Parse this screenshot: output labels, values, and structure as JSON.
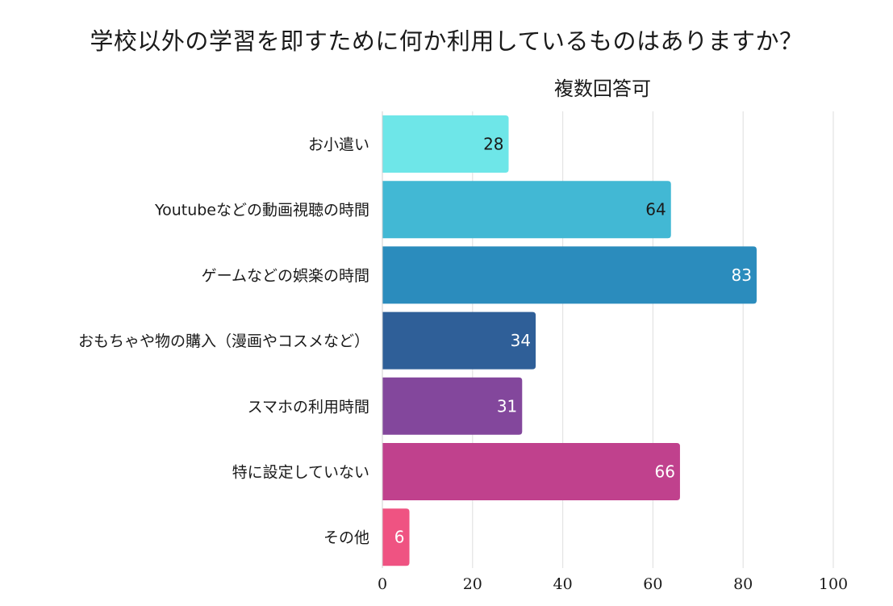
{
  "chart_data": {
    "type": "bar",
    "orientation": "horizontal",
    "title": "学校以外の学習を即すために何か利用しているものはありますか？",
    "subtitle": "複数回答可",
    "categories": [
      "お小遣い",
      "Youtubeなどの動画視聴の時間",
      "ゲームなどの娯楽の時間",
      "おもちゃや物の購入（漫画やコスメなど）",
      "スマホの利用時間",
      "特に設定していない",
      "その他"
    ],
    "values": [
      28,
      64,
      83,
      34,
      31,
      66,
      6
    ],
    "value_labels": [
      "28",
      "64",
      "83",
      "34",
      "31",
      "66",
      "6"
    ],
    "colors": [
      "#6ee6e8",
      "#42b8d4",
      "#2b8cbd",
      "#2f5f98",
      "#83479c",
      "#c0418d",
      "#ef5382"
    ],
    "label_colors": [
      "#1a1a1a",
      "#1a1a1a",
      "#ffffff",
      "#ffffff",
      "#ffffff",
      "#ffffff",
      "#ffffff"
    ],
    "xlim": [
      0,
      100
    ],
    "xticks": [
      "0",
      "20",
      "40",
      "60",
      "80",
      "100"
    ],
    "xtick_values": [
      0,
      20,
      40,
      60,
      80,
      100
    ],
    "grid": true,
    "legend": "none"
  }
}
